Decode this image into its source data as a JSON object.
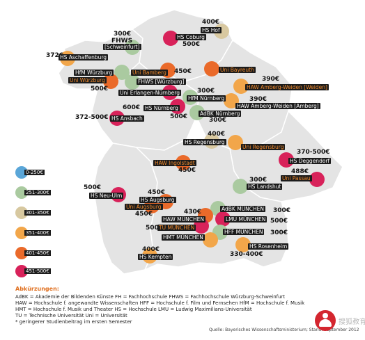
{
  "colors": {
    "cat1": "#5aa6d8",
    "cat2": "#aacaa0",
    "cat3": "#d7c8a0",
    "cat4": "#f2a64a",
    "cat5": "#ea6a2a",
    "cat6": "#d8225a",
    "map_fill": "#e4e4e4",
    "map_stroke": "#ffffff"
  },
  "legend": [
    {
      "label": "0-250€",
      "cat": 1
    },
    {
      "label": "251-300€",
      "cat": 2
    },
    {
      "label": "301-350€",
      "cat": 3
    },
    {
      "label": "351-400€",
      "cat": 4
    },
    {
      "label": "401-450€",
      "cat": 5
    },
    {
      "label": "451-500€",
      "cat": 6
    }
  ],
  "fees": [
    "400€",
    "300€",
    "FHWS",
    "500€",
    "372€",
    "450€",
    "500€",
    "390€",
    "300€",
    "390€",
    "600€",
    "500€",
    "300€",
    "372-500€",
    "400€",
    "370-500€",
    "450€",
    "488€",
    "300€",
    "500€",
    "450€",
    "450€",
    "430€",
    "300€",
    "500€",
    "500€",
    "300€",
    "400€",
    "330-400€"
  ],
  "institutions": [
    "HS Hof",
    "HS Coburg",
    "[Schweinfurt]",
    "HS Aschaffenburg",
    "HfM Würzburg",
    "Uni Würzburg",
    "Uni Bamberg",
    "FHWS [Würzburg]",
    "Uni Bayreuth",
    "HAW Amberg-Weiden [Weiden]",
    "Uni Erlangen-Nürnberg",
    "HfM Nürnberg",
    "HAW Amberg-Weiden [Amberg]",
    "HS Nürnberg",
    "AdBK Nürnberg",
    "HS Ansbach",
    "HS Regensburg",
    "Uni Regensburg",
    "HS Deggendorf",
    "HAW Ingolstadt",
    "Uni Passau",
    "HS Landshut",
    "HS Neu-Ulm",
    "HS Augsburg",
    "Uni Augsburg",
    "AdBK MÜNCHEN",
    "HAW MÜNCHEN",
    "LMU MÜNCHEN",
    "TU MÜNCHEN",
    "HFF MÜNCHEN",
    "HMT MÜNCHEN",
    "HS Kempten",
    "HS Rosenheim"
  ],
  "abbreviations": {
    "title": "Abkürzungen:",
    "lines": [
      "AdBK = Akademie der Bildenden Künste  FH = Fachhochschule  FHWS = Fachhochschule Würzburg-Schweinfurt",
      "HAW = Hochschule f. angewandte Wissenschaften  HFF = Hochschule f. Film und Fernsehen  HfM = Hochschule f. Musik",
      "HMT = Hochschule f. Musik und Theater  HS = Hochschule  LMU = Ludwig Maximilians-Universität",
      "TU = Technische Universität  Uni = Universität",
      "* geringerer Studienbeitrag im ersten Semester"
    ]
  },
  "source": "Quelle: Bayerisches Wissenschaftsministerium; Stand: September 2012",
  "watermark": "搜狐教育"
}
